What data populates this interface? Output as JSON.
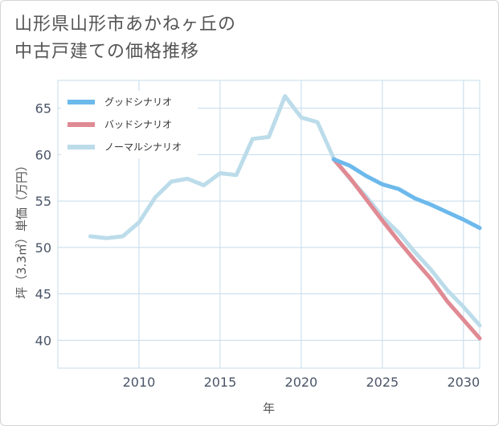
{
  "title_lines": [
    "山形県山形市あかねヶ丘の",
    "中古戸建ての価格推移"
  ],
  "colors": {
    "good": "#6cb9ec",
    "bad": "#e08a93",
    "normal": "#bcdcea",
    "grid": "#c5dceb"
  },
  "chart_data": {
    "type": "line",
    "title": "山形県山形市あかねヶ丘の中古戸建ての価格推移",
    "xlabel": "年",
    "ylabel": "坪（3.3㎡）単価（万円）",
    "xlim": [
      2005,
      2031
    ],
    "ylim": [
      37,
      68
    ],
    "x_ticks": [
      2010,
      2015,
      2020,
      2025,
      2030
    ],
    "y_ticks": [
      40,
      45,
      50,
      55,
      60,
      65
    ],
    "legend_position": "top-left",
    "series": [
      {
        "key": "good",
        "name": "グッドシナリオ",
        "x": [
          2022,
          2023,
          2024,
          2025,
          2026,
          2027,
          2028,
          2029,
          2030,
          2031
        ],
        "y": [
          59.5,
          58.8,
          57.7,
          56.8,
          56.3,
          55.3,
          54.6,
          53.8,
          53.0,
          52.1
        ]
      },
      {
        "key": "bad",
        "name": "バッドシナリオ",
        "x": [
          2022,
          2023,
          2024,
          2025,
          2026,
          2027,
          2028,
          2029,
          2030,
          2031
        ],
        "y": [
          59.5,
          57.5,
          55.2,
          52.9,
          50.7,
          48.6,
          46.6,
          44.2,
          42.2,
          40.2
        ]
      },
      {
        "key": "normal",
        "name": "ノーマルシナリオ",
        "x": [
          2007,
          2008,
          2009,
          2010,
          2011,
          2012,
          2013,
          2014,
          2015,
          2016,
          2017,
          2018,
          2019,
          2020,
          2021,
          2022,
          2023,
          2024,
          2025,
          2026,
          2027,
          2028,
          2029,
          2030,
          2031
        ],
        "y": [
          51.2,
          51.0,
          51.2,
          52.7,
          55.4,
          57.1,
          57.4,
          56.7,
          58.0,
          57.8,
          61.7,
          61.9,
          66.3,
          64.0,
          63.5,
          59.6,
          57.4,
          55.5,
          53.3,
          51.6,
          49.5,
          47.6,
          45.4,
          43.6,
          41.6
        ]
      }
    ]
  }
}
